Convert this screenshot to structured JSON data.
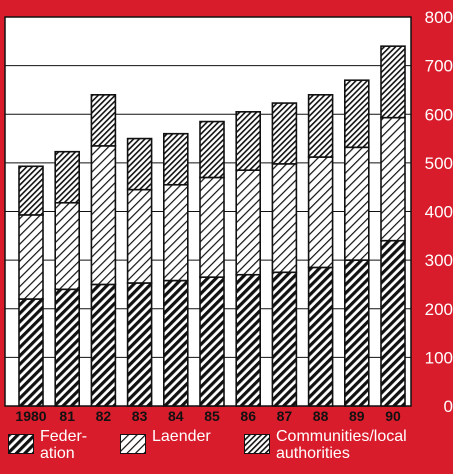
{
  "chart_data": {
    "type": "bar",
    "stacked": true,
    "categories": [
      "1980",
      "81",
      "82",
      "83",
      "84",
      "85",
      "86",
      "87",
      "88",
      "89",
      "90"
    ],
    "series": [
      {
        "name": "Federation",
        "values": [
          220,
          240,
          250,
          253,
          258,
          265,
          270,
          275,
          285,
          300,
          340
        ]
      },
      {
        "name": "Laender",
        "values": [
          173,
          178,
          285,
          192,
          197,
          205,
          215,
          223,
          227,
          232,
          253
        ]
      },
      {
        "name": "Communities/local authorities",
        "values": [
          100,
          105,
          105,
          105,
          105,
          115,
          120,
          125,
          128,
          138,
          147
        ]
      }
    ],
    "y_ticks": [
      "0",
      "100",
      "200",
      "300",
      "400",
      "500",
      "600",
      "700",
      "800"
    ],
    "ylim": [
      0,
      800
    ],
    "grid": true,
    "legend_position": "bottom",
    "colors": {
      "background": "#d91c2c",
      "plot_area": "#ffffff",
      "ink": "#111111",
      "text": "#ffffff"
    }
  },
  "legend": {
    "federation": [
      "Feder-",
      "ation"
    ],
    "laender": [
      "Laender"
    ],
    "communities": [
      "Communities/local",
      "authorities"
    ]
  }
}
